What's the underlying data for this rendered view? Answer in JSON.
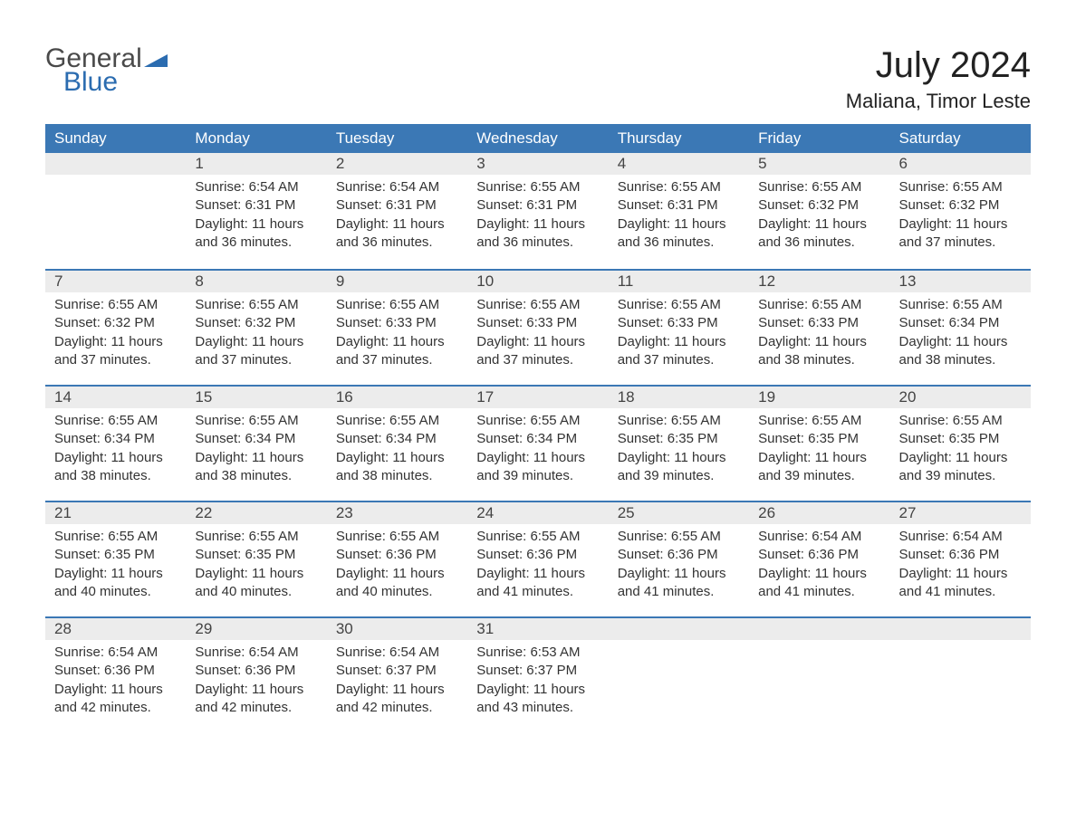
{
  "logo": {
    "general": "General",
    "blue": "Blue"
  },
  "title": "July 2024",
  "location": "Maliana, Timor Leste",
  "colors": {
    "header_bg": "#3b78b5",
    "header_fg": "#ffffff",
    "daynum_bg": "#ececec",
    "row_divider": "#3b78b5",
    "text": "#333333",
    "logo_gray": "#4a4a4a",
    "logo_blue": "#2b6cb0",
    "page_bg": "#ffffff"
  },
  "weekdays": [
    "Sunday",
    "Monday",
    "Tuesday",
    "Wednesday",
    "Thursday",
    "Friday",
    "Saturday"
  ],
  "weeks": [
    [
      null,
      {
        "n": "1",
        "sunrise": "6:54 AM",
        "sunset": "6:31 PM",
        "daylight": "11 hours and 36 minutes."
      },
      {
        "n": "2",
        "sunrise": "6:54 AM",
        "sunset": "6:31 PM",
        "daylight": "11 hours and 36 minutes."
      },
      {
        "n": "3",
        "sunrise": "6:55 AM",
        "sunset": "6:31 PM",
        "daylight": "11 hours and 36 minutes."
      },
      {
        "n": "4",
        "sunrise": "6:55 AM",
        "sunset": "6:31 PM",
        "daylight": "11 hours and 36 minutes."
      },
      {
        "n": "5",
        "sunrise": "6:55 AM",
        "sunset": "6:32 PM",
        "daylight": "11 hours and 36 minutes."
      },
      {
        "n": "6",
        "sunrise": "6:55 AM",
        "sunset": "6:32 PM",
        "daylight": "11 hours and 37 minutes."
      }
    ],
    [
      {
        "n": "7",
        "sunrise": "6:55 AM",
        "sunset": "6:32 PM",
        "daylight": "11 hours and 37 minutes."
      },
      {
        "n": "8",
        "sunrise": "6:55 AM",
        "sunset": "6:32 PM",
        "daylight": "11 hours and 37 minutes."
      },
      {
        "n": "9",
        "sunrise": "6:55 AM",
        "sunset": "6:33 PM",
        "daylight": "11 hours and 37 minutes."
      },
      {
        "n": "10",
        "sunrise": "6:55 AM",
        "sunset": "6:33 PM",
        "daylight": "11 hours and 37 minutes."
      },
      {
        "n": "11",
        "sunrise": "6:55 AM",
        "sunset": "6:33 PM",
        "daylight": "11 hours and 37 minutes."
      },
      {
        "n": "12",
        "sunrise": "6:55 AM",
        "sunset": "6:33 PM",
        "daylight": "11 hours and 38 minutes."
      },
      {
        "n": "13",
        "sunrise": "6:55 AM",
        "sunset": "6:34 PM",
        "daylight": "11 hours and 38 minutes."
      }
    ],
    [
      {
        "n": "14",
        "sunrise": "6:55 AM",
        "sunset": "6:34 PM",
        "daylight": "11 hours and 38 minutes."
      },
      {
        "n": "15",
        "sunrise": "6:55 AM",
        "sunset": "6:34 PM",
        "daylight": "11 hours and 38 minutes."
      },
      {
        "n": "16",
        "sunrise": "6:55 AM",
        "sunset": "6:34 PM",
        "daylight": "11 hours and 38 minutes."
      },
      {
        "n": "17",
        "sunrise": "6:55 AM",
        "sunset": "6:34 PM",
        "daylight": "11 hours and 39 minutes."
      },
      {
        "n": "18",
        "sunrise": "6:55 AM",
        "sunset": "6:35 PM",
        "daylight": "11 hours and 39 minutes."
      },
      {
        "n": "19",
        "sunrise": "6:55 AM",
        "sunset": "6:35 PM",
        "daylight": "11 hours and 39 minutes."
      },
      {
        "n": "20",
        "sunrise": "6:55 AM",
        "sunset": "6:35 PM",
        "daylight": "11 hours and 39 minutes."
      }
    ],
    [
      {
        "n": "21",
        "sunrise": "6:55 AM",
        "sunset": "6:35 PM",
        "daylight": "11 hours and 40 minutes."
      },
      {
        "n": "22",
        "sunrise": "6:55 AM",
        "sunset": "6:35 PM",
        "daylight": "11 hours and 40 minutes."
      },
      {
        "n": "23",
        "sunrise": "6:55 AM",
        "sunset": "6:36 PM",
        "daylight": "11 hours and 40 minutes."
      },
      {
        "n": "24",
        "sunrise": "6:55 AM",
        "sunset": "6:36 PM",
        "daylight": "11 hours and 41 minutes."
      },
      {
        "n": "25",
        "sunrise": "6:55 AM",
        "sunset": "6:36 PM",
        "daylight": "11 hours and 41 minutes."
      },
      {
        "n": "26",
        "sunrise": "6:54 AM",
        "sunset": "6:36 PM",
        "daylight": "11 hours and 41 minutes."
      },
      {
        "n": "27",
        "sunrise": "6:54 AM",
        "sunset": "6:36 PM",
        "daylight": "11 hours and 41 minutes."
      }
    ],
    [
      {
        "n": "28",
        "sunrise": "6:54 AM",
        "sunset": "6:36 PM",
        "daylight": "11 hours and 42 minutes."
      },
      {
        "n": "29",
        "sunrise": "6:54 AM",
        "sunset": "6:36 PM",
        "daylight": "11 hours and 42 minutes."
      },
      {
        "n": "30",
        "sunrise": "6:54 AM",
        "sunset": "6:37 PM",
        "daylight": "11 hours and 42 minutes."
      },
      {
        "n": "31",
        "sunrise": "6:53 AM",
        "sunset": "6:37 PM",
        "daylight": "11 hours and 43 minutes."
      },
      null,
      null,
      null
    ]
  ],
  "labels": {
    "sunrise": "Sunrise: ",
    "sunset": "Sunset: ",
    "daylight": "Daylight: "
  }
}
